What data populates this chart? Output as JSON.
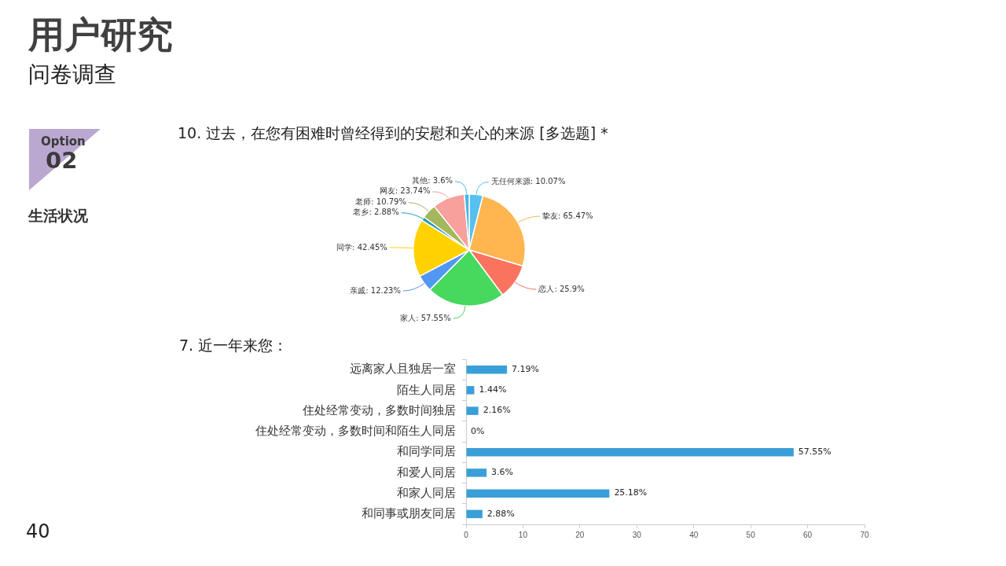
{
  "chart_data": [
    {
      "type": "other",
      "title": "用户研究",
      "subtitle": "问卷调查",
      "annotations": [
        "Option",
        "02",
        "生活状况",
        "40"
      ]
    },
    {
      "type": "pie",
      "title": "10. 过去，在您有困难时曾经得到的安慰和关心的来源  [多选题] *",
      "categories": [
        "无任何来源",
        "挚友",
        "恋人",
        "家人",
        "亲戚",
        "同学",
        "老乡",
        "老师",
        "网友",
        "其他"
      ],
      "values": [
        10.07,
        65.47,
        25.9,
        57.55,
        12.23,
        42.45,
        2.88,
        10.79,
        23.74,
        3.6
      ],
      "value_labels": [
        "10.07%",
        "65.47%",
        "25.9%",
        "57.55%",
        "12.23%",
        "42.45%",
        "2.88%",
        "10.79%",
        "23.74%",
        "3.6%"
      ],
      "colors": [
        "#56c1f0",
        "#ffb650",
        "#f9735f",
        "#47d85e",
        "#5297f3",
        "#ffd200",
        "#1f9cb6",
        "#a4b75c",
        "#f7a09c",
        "#4ab6e6"
      ]
    },
    {
      "type": "bar",
      "orientation": "horizontal",
      "title": "7. 近一年来您：",
      "categories": [
        "远离家人且独居一室",
        "陌生人同居",
        "住处经常变动，多数时间独居",
        "住处经常变动，多数时间和陌生人同居",
        "和同学同居",
        "和爱人同居",
        "和家人同居",
        "和同事或朋友同居"
      ],
      "values": [
        7.19,
        1.44,
        2.16,
        0,
        57.55,
        3.6,
        25.18,
        2.88
      ],
      "value_labels": [
        "7.19%",
        "1.44%",
        "2.16%",
        "0%",
        "57.55%",
        "3.6%",
        "25.18%",
        "2.88%"
      ],
      "color": "#3a9fd8",
      "xlim": [
        0,
        70
      ],
      "xticks": [
        0,
        10,
        20,
        30,
        40,
        50,
        60,
        70
      ],
      "grid": false
    }
  ]
}
